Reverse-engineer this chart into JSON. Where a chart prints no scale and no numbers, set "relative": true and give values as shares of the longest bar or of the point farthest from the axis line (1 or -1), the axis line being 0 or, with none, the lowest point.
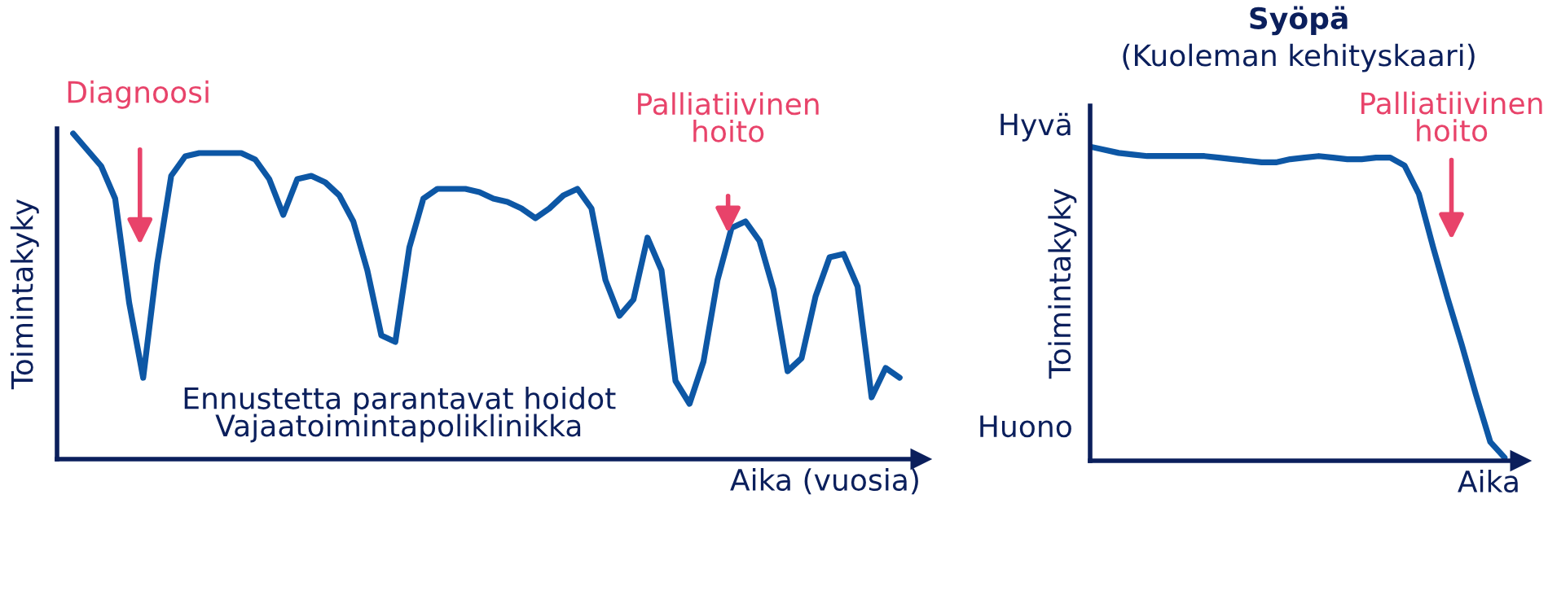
{
  "chart_data": [
    {
      "type": "line",
      "relative": true,
      "tick_labels": false,
      "grid": false,
      "legend": false,
      "marker": "none",
      "line_style": "solid",
      "xlabel": "Aika (vuosia)",
      "ylabel": "Toimintakyky",
      "annotations": [
        "Diagnoosi",
        "Palliatiivinen\nhoito",
        "Ennustetta parantavat hoidot\nVajaatoimintapoliklinikka"
      ],
      "categories": [
        null,
        null,
        null,
        null,
        null,
        null,
        null,
        null,
        null,
        null,
        null,
        null,
        null,
        null,
        null,
        null,
        null,
        null,
        null,
        null,
        null,
        null,
        null,
        null,
        null,
        null,
        null,
        null,
        null,
        null,
        null,
        null,
        null,
        null,
        null,
        null,
        null,
        null,
        null,
        null,
        null,
        null,
        null,
        null,
        null,
        null,
        null,
        null,
        null,
        null,
        null,
        null,
        null,
        null,
        null,
        null,
        null,
        null,
        null,
        null
      ],
      "series": [
        {
          "color": "#0d57a5",
          "values": [
            1.0,
            0.95,
            0.9,
            0.8,
            0.48,
            0.25,
            0.6,
            0.87,
            0.93,
            0.94,
            0.94,
            0.94,
            0.94,
            0.92,
            0.86,
            0.75,
            0.86,
            0.87,
            0.85,
            0.81,
            0.73,
            0.58,
            0.38,
            0.36,
            0.65,
            0.8,
            0.83,
            0.83,
            0.83,
            0.82,
            0.8,
            0.79,
            0.77,
            0.74,
            0.77,
            0.81,
            0.83,
            0.77,
            0.55,
            0.44,
            0.49,
            0.68,
            0.58,
            0.24,
            0.17,
            0.3,
            0.55,
            0.71,
            0.73,
            0.67,
            0.52,
            0.27,
            0.31,
            0.5,
            0.62,
            0.63,
            0.53,
            0.19,
            0.28,
            0.25
          ]
        }
      ]
    },
    {
      "type": "line",
      "relative": true,
      "tick_labels": false,
      "grid": false,
      "legend": false,
      "marker": "none",
      "line_style": "solid",
      "title": "Syöpä",
      "subtitle": "(Kuoleman kehityskaari)",
      "xlabel": "Aika",
      "ylabel": "Toimintakyky",
      "annotations": [
        "Hyvä",
        "Huono",
        "Palliatiivinen\nhoito"
      ],
      "categories": [
        null,
        null,
        null,
        null,
        null,
        null,
        null,
        null,
        null,
        null,
        null,
        null,
        null,
        null,
        null,
        null,
        null,
        null,
        null,
        null,
        null,
        null,
        null,
        null,
        null,
        null,
        null,
        null,
        null,
        null
      ],
      "series": [
        {
          "color": "#0d57a5",
          "values": [
            1.0,
            0.99,
            0.98,
            0.975,
            0.97,
            0.97,
            0.97,
            0.97,
            0.97,
            0.965,
            0.96,
            0.955,
            0.95,
            0.95,
            0.96,
            0.965,
            0.97,
            0.965,
            0.96,
            0.96,
            0.965,
            0.965,
            0.94,
            0.85,
            0.68,
            0.52,
            0.37,
            0.21,
            0.06,
            0.01
          ]
        }
      ]
    }
  ]
}
